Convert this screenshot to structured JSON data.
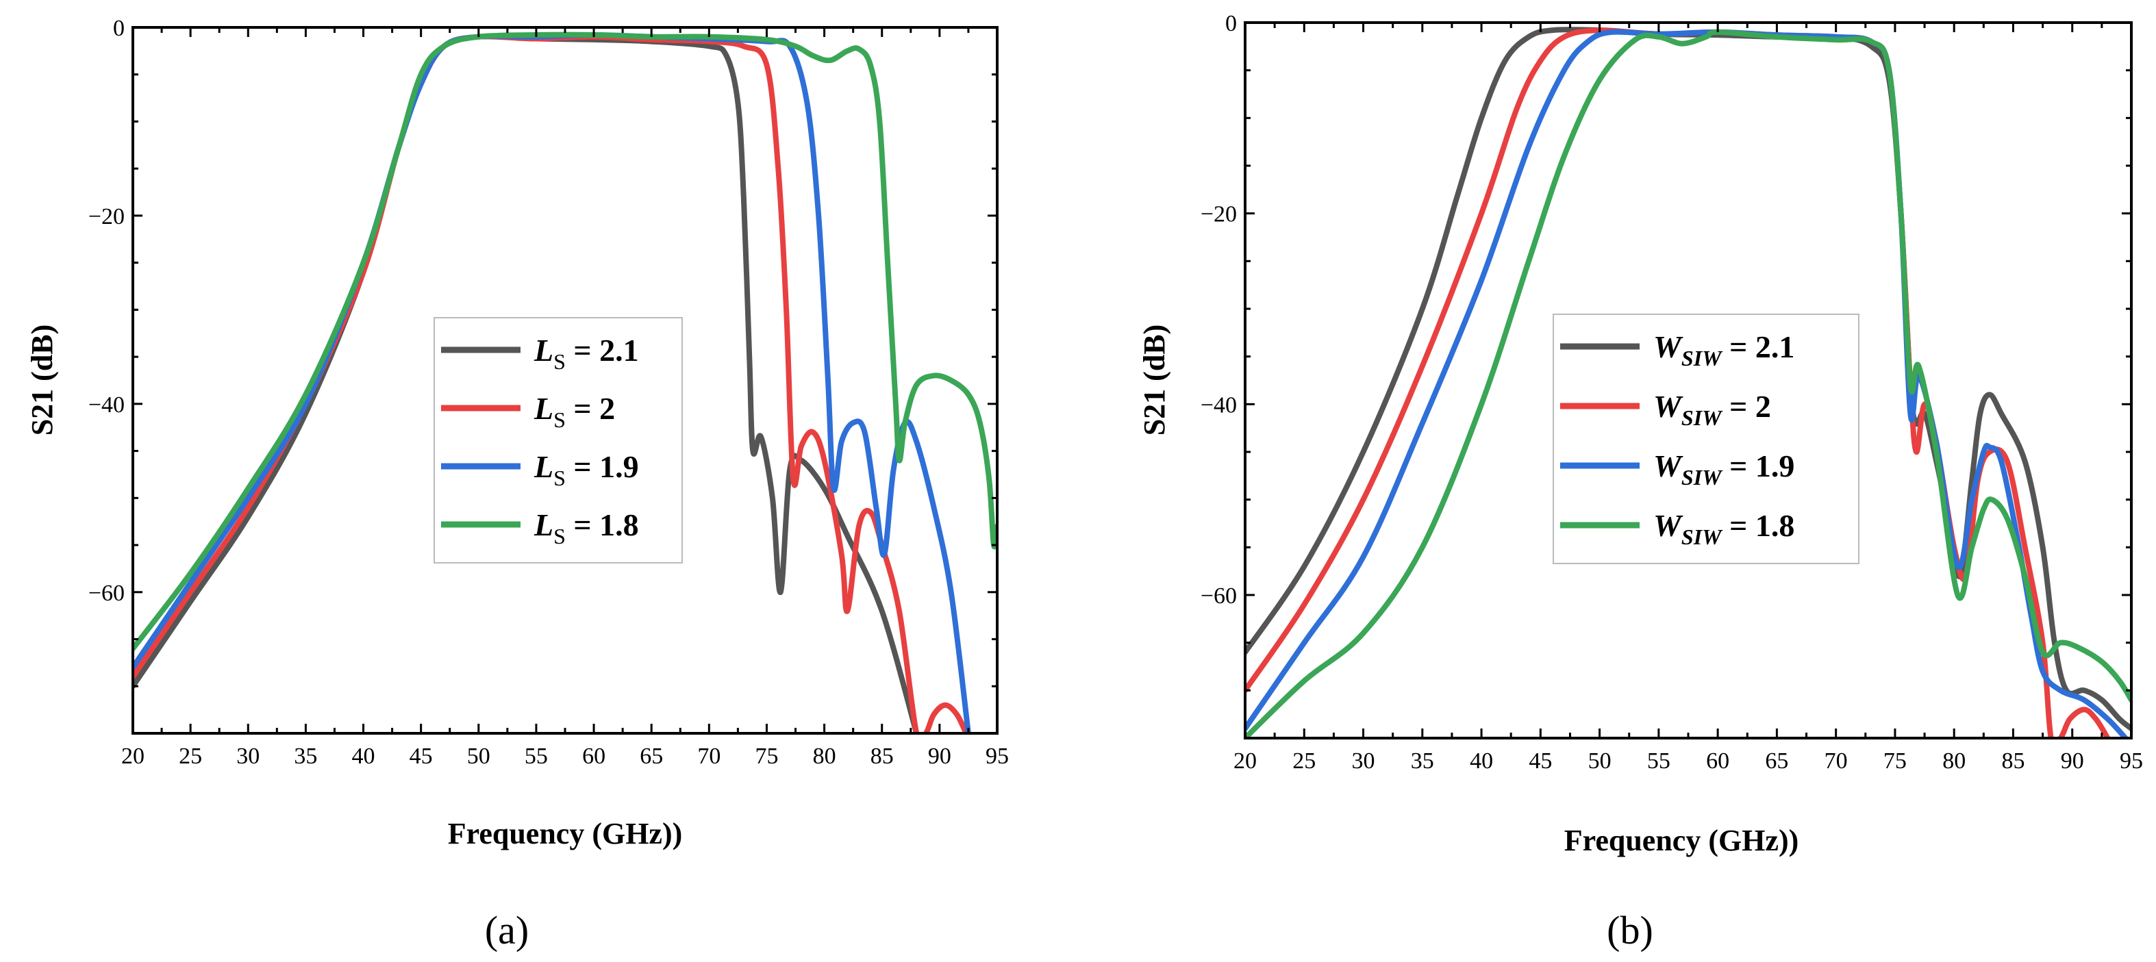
{
  "chart_data": [
    {
      "type": "line",
      "panel_label": "(a)",
      "xlabel": "Frequency (GHz))",
      "ylabel": "S21 (dB)",
      "xlim": [
        20,
        95
      ],
      "ylim": [
        -75,
        0
      ],
      "xticks": [
        20,
        25,
        30,
        35,
        40,
        45,
        50,
        55,
        60,
        65,
        70,
        75,
        80,
        85,
        90,
        95
      ],
      "yticks": [
        0,
        -20,
        -40,
        -60
      ],
      "ytick_labels": [
        "0",
        "−20",
        "−40",
        "−60"
      ],
      "legend_position": "center",
      "series": [
        {
          "name": "LS = 2.1",
          "prefix": "L",
          "subscript": "S",
          "value_text": " = 2.1",
          "color": "#555555",
          "points": [
            [
              20,
              -70
            ],
            [
              25,
              -61
            ],
            [
              30,
              -52
            ],
            [
              35,
              -41
            ],
            [
              40,
              -26
            ],
            [
              43,
              -13
            ],
            [
              45,
              -6
            ],
            [
              47,
              -2
            ],
            [
              50,
              -1
            ],
            [
              55,
              -1.2
            ],
            [
              60,
              -1.3
            ],
            [
              65,
              -1.5
            ],
            [
              70,
              -2
            ],
            [
              71.5,
              -3
            ],
            [
              72.5,
              -8
            ],
            [
              73,
              -18
            ],
            [
              73.5,
              -35
            ],
            [
              73.8,
              -45
            ],
            [
              74.5,
              -43.5
            ],
            [
              75.5,
              -50
            ],
            [
              76.2,
              -60
            ],
            [
              77,
              -47
            ],
            [
              78,
              -46
            ],
            [
              80,
              -49
            ],
            [
              82,
              -54
            ],
            [
              85,
              -62
            ],
            [
              88,
              -75
            ]
          ]
        },
        {
          "name": "LS = 2",
          "prefix": "L",
          "subscript": "S",
          "value_text": " = 2",
          "color": "#e84040",
          "points": [
            [
              20,
              -69
            ],
            [
              25,
              -60
            ],
            [
              30,
              -51
            ],
            [
              35,
              -40
            ],
            [
              40,
              -26
            ],
            [
              43,
              -13
            ],
            [
              45,
              -6
            ],
            [
              47,
              -2
            ],
            [
              50,
              -1
            ],
            [
              55,
              -1.2
            ],
            [
              60,
              -1
            ],
            [
              65,
              -1.3
            ],
            [
              70,
              -1.5
            ],
            [
              73,
              -2
            ],
            [
              75,
              -4
            ],
            [
              76,
              -15
            ],
            [
              76.7,
              -30
            ],
            [
              77.3,
              -48
            ],
            [
              78,
              -44.5
            ],
            [
              79,
              -43
            ],
            [
              80,
              -46
            ],
            [
              81.5,
              -56
            ],
            [
              82,
              -62
            ],
            [
              83,
              -53
            ],
            [
              84,
              -51.5
            ],
            [
              85,
              -55
            ],
            [
              86.5,
              -62
            ],
            [
              88,
              -75
            ],
            [
              88.8,
              -75
            ],
            [
              89.5,
              -73
            ],
            [
              90.5,
              -72
            ],
            [
              91.5,
              -73
            ],
            [
              92.3,
              -75
            ]
          ]
        },
        {
          "name": "LS = 1.9",
          "prefix": "L",
          "subscript": "S",
          "value_text": " = 1.9",
          "color": "#2f6fd8",
          "points": [
            [
              20,
              -68
            ],
            [
              25,
              -59
            ],
            [
              30,
              -50
            ],
            [
              35,
              -40
            ],
            [
              40,
              -25
            ],
            [
              43,
              -13
            ],
            [
              45,
              -6
            ],
            [
              47,
              -2
            ],
            [
              50,
              -1
            ],
            [
              55,
              -1
            ],
            [
              60,
              -0.8
            ],
            [
              65,
              -1
            ],
            [
              70,
              -1.2
            ],
            [
              75,
              -1.5
            ],
            [
              77,
              -2
            ],
            [
              78.5,
              -8
            ],
            [
              79.5,
              -20
            ],
            [
              80.3,
              -37
            ],
            [
              80.8,
              -49
            ],
            [
              81.5,
              -44
            ],
            [
              82.5,
              -42
            ],
            [
              83.5,
              -43
            ],
            [
              84.5,
              -51
            ],
            [
              85.2,
              -56
            ],
            [
              86,
              -47
            ],
            [
              87,
              -42
            ],
            [
              88,
              -44
            ],
            [
              89.5,
              -51
            ],
            [
              91,
              -60
            ],
            [
              92.5,
              -75
            ]
          ]
        },
        {
          "name": "LS = 1.8",
          "prefix": "L",
          "subscript": "S",
          "value_text": " = 1.8",
          "color": "#3aa656",
          "points": [
            [
              20,
              -66
            ],
            [
              25,
              -58
            ],
            [
              30,
              -49
            ],
            [
              35,
              -39
            ],
            [
              40,
              -25
            ],
            [
              43,
              -13
            ],
            [
              45,
              -5
            ],
            [
              47,
              -2
            ],
            [
              50,
              -1
            ],
            [
              55,
              -0.8
            ],
            [
              60,
              -0.8
            ],
            [
              65,
              -1
            ],
            [
              70,
              -1
            ],
            [
              75,
              -1.3
            ],
            [
              77.5,
              -2
            ],
            [
              79,
              -3
            ],
            [
              80.5,
              -3.5
            ],
            [
              82,
              -2.5
            ],
            [
              83,
              -2.3
            ],
            [
              84,
              -4
            ],
            [
              84.8,
              -10
            ],
            [
              85.5,
              -25
            ],
            [
              86.2,
              -40
            ],
            [
              86.5,
              -46
            ],
            [
              87,
              -42
            ],
            [
              88,
              -38
            ],
            [
              89.5,
              -37
            ],
            [
              91,
              -37.5
            ],
            [
              92.5,
              -39
            ],
            [
              93.5,
              -42
            ],
            [
              94.3,
              -48
            ],
            [
              94.7,
              -55
            ],
            [
              95,
              -53
            ]
          ]
        }
      ]
    },
    {
      "type": "line",
      "panel_label": "(b)",
      "xlabel": "Frequency (GHz))",
      "ylabel": "S21 (dB)",
      "xlim": [
        20,
        95
      ],
      "ylim": [
        -75,
        0
      ],
      "xticks": [
        20,
        25,
        30,
        35,
        40,
        45,
        50,
        55,
        60,
        65,
        70,
        75,
        80,
        85,
        90,
        95
      ],
      "yticks": [
        0,
        -20,
        -40,
        -60
      ],
      "ytick_labels": [
        "0",
        "−20",
        "−40",
        "−60"
      ],
      "legend_position": "center-right",
      "series": [
        {
          "name": "WSIW = 2.1",
          "prefix": "W",
          "subscript": "SIW",
          "value_text": " = 2.1",
          "color": "#555555",
          "points": [
            [
              20,
              -66
            ],
            [
              25,
              -57
            ],
            [
              30,
              -45
            ],
            [
              35,
              -30
            ],
            [
              38,
              -18
            ],
            [
              40,
              -10
            ],
            [
              42,
              -4
            ],
            [
              44,
              -1.5
            ],
            [
              46,
              -0.8
            ],
            [
              50,
              -0.8
            ],
            [
              55,
              -1.2
            ],
            [
              60,
              -1.3
            ],
            [
              65,
              -1.5
            ],
            [
              70,
              -1.5
            ],
            [
              73,
              -2.5
            ],
            [
              74.5,
              -6
            ],
            [
              75.5,
              -20
            ],
            [
              76.3,
              -38
            ],
            [
              76.8,
              -42
            ],
            [
              77.5,
              -41
            ],
            [
              78.5,
              -46
            ],
            [
              79.5,
              -52
            ],
            [
              80.5,
              -58
            ],
            [
              81.5,
              -48
            ],
            [
              82.2,
              -41
            ],
            [
              83,
              -39
            ],
            [
              84,
              -41
            ],
            [
              86,
              -46
            ],
            [
              87.5,
              -55
            ],
            [
              88.5,
              -65
            ],
            [
              89.5,
              -70
            ],
            [
              91,
              -70
            ],
            [
              92.5,
              -71
            ],
            [
              94,
              -73
            ],
            [
              95,
              -74
            ]
          ]
        },
        {
          "name": "WSIW = 2",
          "prefix": "W",
          "subscript": "SIW",
          "value_text": " = 2",
          "color": "#e84040",
          "points": [
            [
              20,
              -70
            ],
            [
              25,
              -61
            ],
            [
              30,
              -50
            ],
            [
              35,
              -36
            ],
            [
              40,
              -20
            ],
            [
              43,
              -9
            ],
            [
              45,
              -4
            ],
            [
              47,
              -1.5
            ],
            [
              50,
              -0.8
            ],
            [
              55,
              -1.2
            ],
            [
              60,
              -1
            ],
            [
              65,
              -1.3
            ],
            [
              70,
              -1.5
            ],
            [
              73,
              -2
            ],
            [
              74.5,
              -5
            ],
            [
              75.5,
              -20
            ],
            [
              76.3,
              -38
            ],
            [
              76.8,
              -45
            ],
            [
              77.5,
              -40
            ],
            [
              78.5,
              -44
            ],
            [
              80,
              -55
            ],
            [
              81,
              -58
            ],
            [
              82,
              -48
            ],
            [
              83,
              -45
            ],
            [
              84.5,
              -46
            ],
            [
              86,
              -55
            ],
            [
              87.5,
              -65
            ],
            [
              88.2,
              -75
            ],
            [
              89,
              -75
            ],
            [
              89.8,
              -73
            ],
            [
              91,
              -72
            ],
            [
              92,
              -73
            ],
            [
              93,
              -75
            ]
          ]
        },
        {
          "name": "WSIW = 1.9",
          "prefix": "W",
          "subscript": "SIW",
          "value_text": " = 1.9",
          "color": "#2f6fd8",
          "points": [
            [
              20,
              -74
            ],
            [
              25,
              -65
            ],
            [
              30,
              -56
            ],
            [
              35,
              -42
            ],
            [
              40,
              -27
            ],
            [
              44,
              -13
            ],
            [
              47,
              -5
            ],
            [
              49,
              -2
            ],
            [
              51,
              -1
            ],
            [
              55,
              -1.2
            ],
            [
              60,
              -1
            ],
            [
              65,
              -1.3
            ],
            [
              70,
              -1.5
            ],
            [
              73,
              -2
            ],
            [
              74.5,
              -5
            ],
            [
              75.5,
              -20
            ],
            [
              76.3,
              -41
            ],
            [
              77,
              -37
            ],
            [
              78.5,
              -44
            ],
            [
              80.3,
              -57
            ],
            [
              81.5,
              -50
            ],
            [
              82.5,
              -45
            ],
            [
              83,
              -44.5
            ],
            [
              84,
              -46
            ],
            [
              85.5,
              -55
            ],
            [
              86.5,
              -62
            ],
            [
              87.5,
              -68
            ],
            [
              89,
              -70
            ],
            [
              91,
              -71
            ],
            [
              93,
              -73
            ],
            [
              94.5,
              -75
            ]
          ]
        },
        {
          "name": "WSIW = 1.8",
          "prefix": "W",
          "subscript": "SIW",
          "value_text": " = 1.8",
          "color": "#3aa656",
          "points": [
            [
              20,
              -75
            ],
            [
              25,
              -69
            ],
            [
              30,
              -64
            ],
            [
              35,
              -55
            ],
            [
              40,
              -40
            ],
            [
              44,
              -25
            ],
            [
              47,
              -14
            ],
            [
              50,
              -6
            ],
            [
              53,
              -1.8
            ],
            [
              55,
              -1.5
            ],
            [
              57,
              -2.2
            ],
            [
              59,
              -1.5
            ],
            [
              60,
              -1
            ],
            [
              65,
              -1.5
            ],
            [
              70,
              -1.8
            ],
            [
              73,
              -2
            ],
            [
              74.5,
              -5
            ],
            [
              75.5,
              -20
            ],
            [
              76.3,
              -38
            ],
            [
              77,
              -36
            ],
            [
              78.5,
              -45
            ],
            [
              80.3,
              -60
            ],
            [
              81.5,
              -55
            ],
            [
              82.5,
              -51
            ],
            [
              83.2,
              -50
            ],
            [
              84.5,
              -52
            ],
            [
              86,
              -58
            ],
            [
              87.5,
              -66
            ],
            [
              89,
              -65
            ],
            [
              90.5,
              -65.5
            ],
            [
              92.5,
              -67
            ],
            [
              94,
              -69
            ],
            [
              95,
              -71
            ]
          ]
        }
      ]
    }
  ]
}
